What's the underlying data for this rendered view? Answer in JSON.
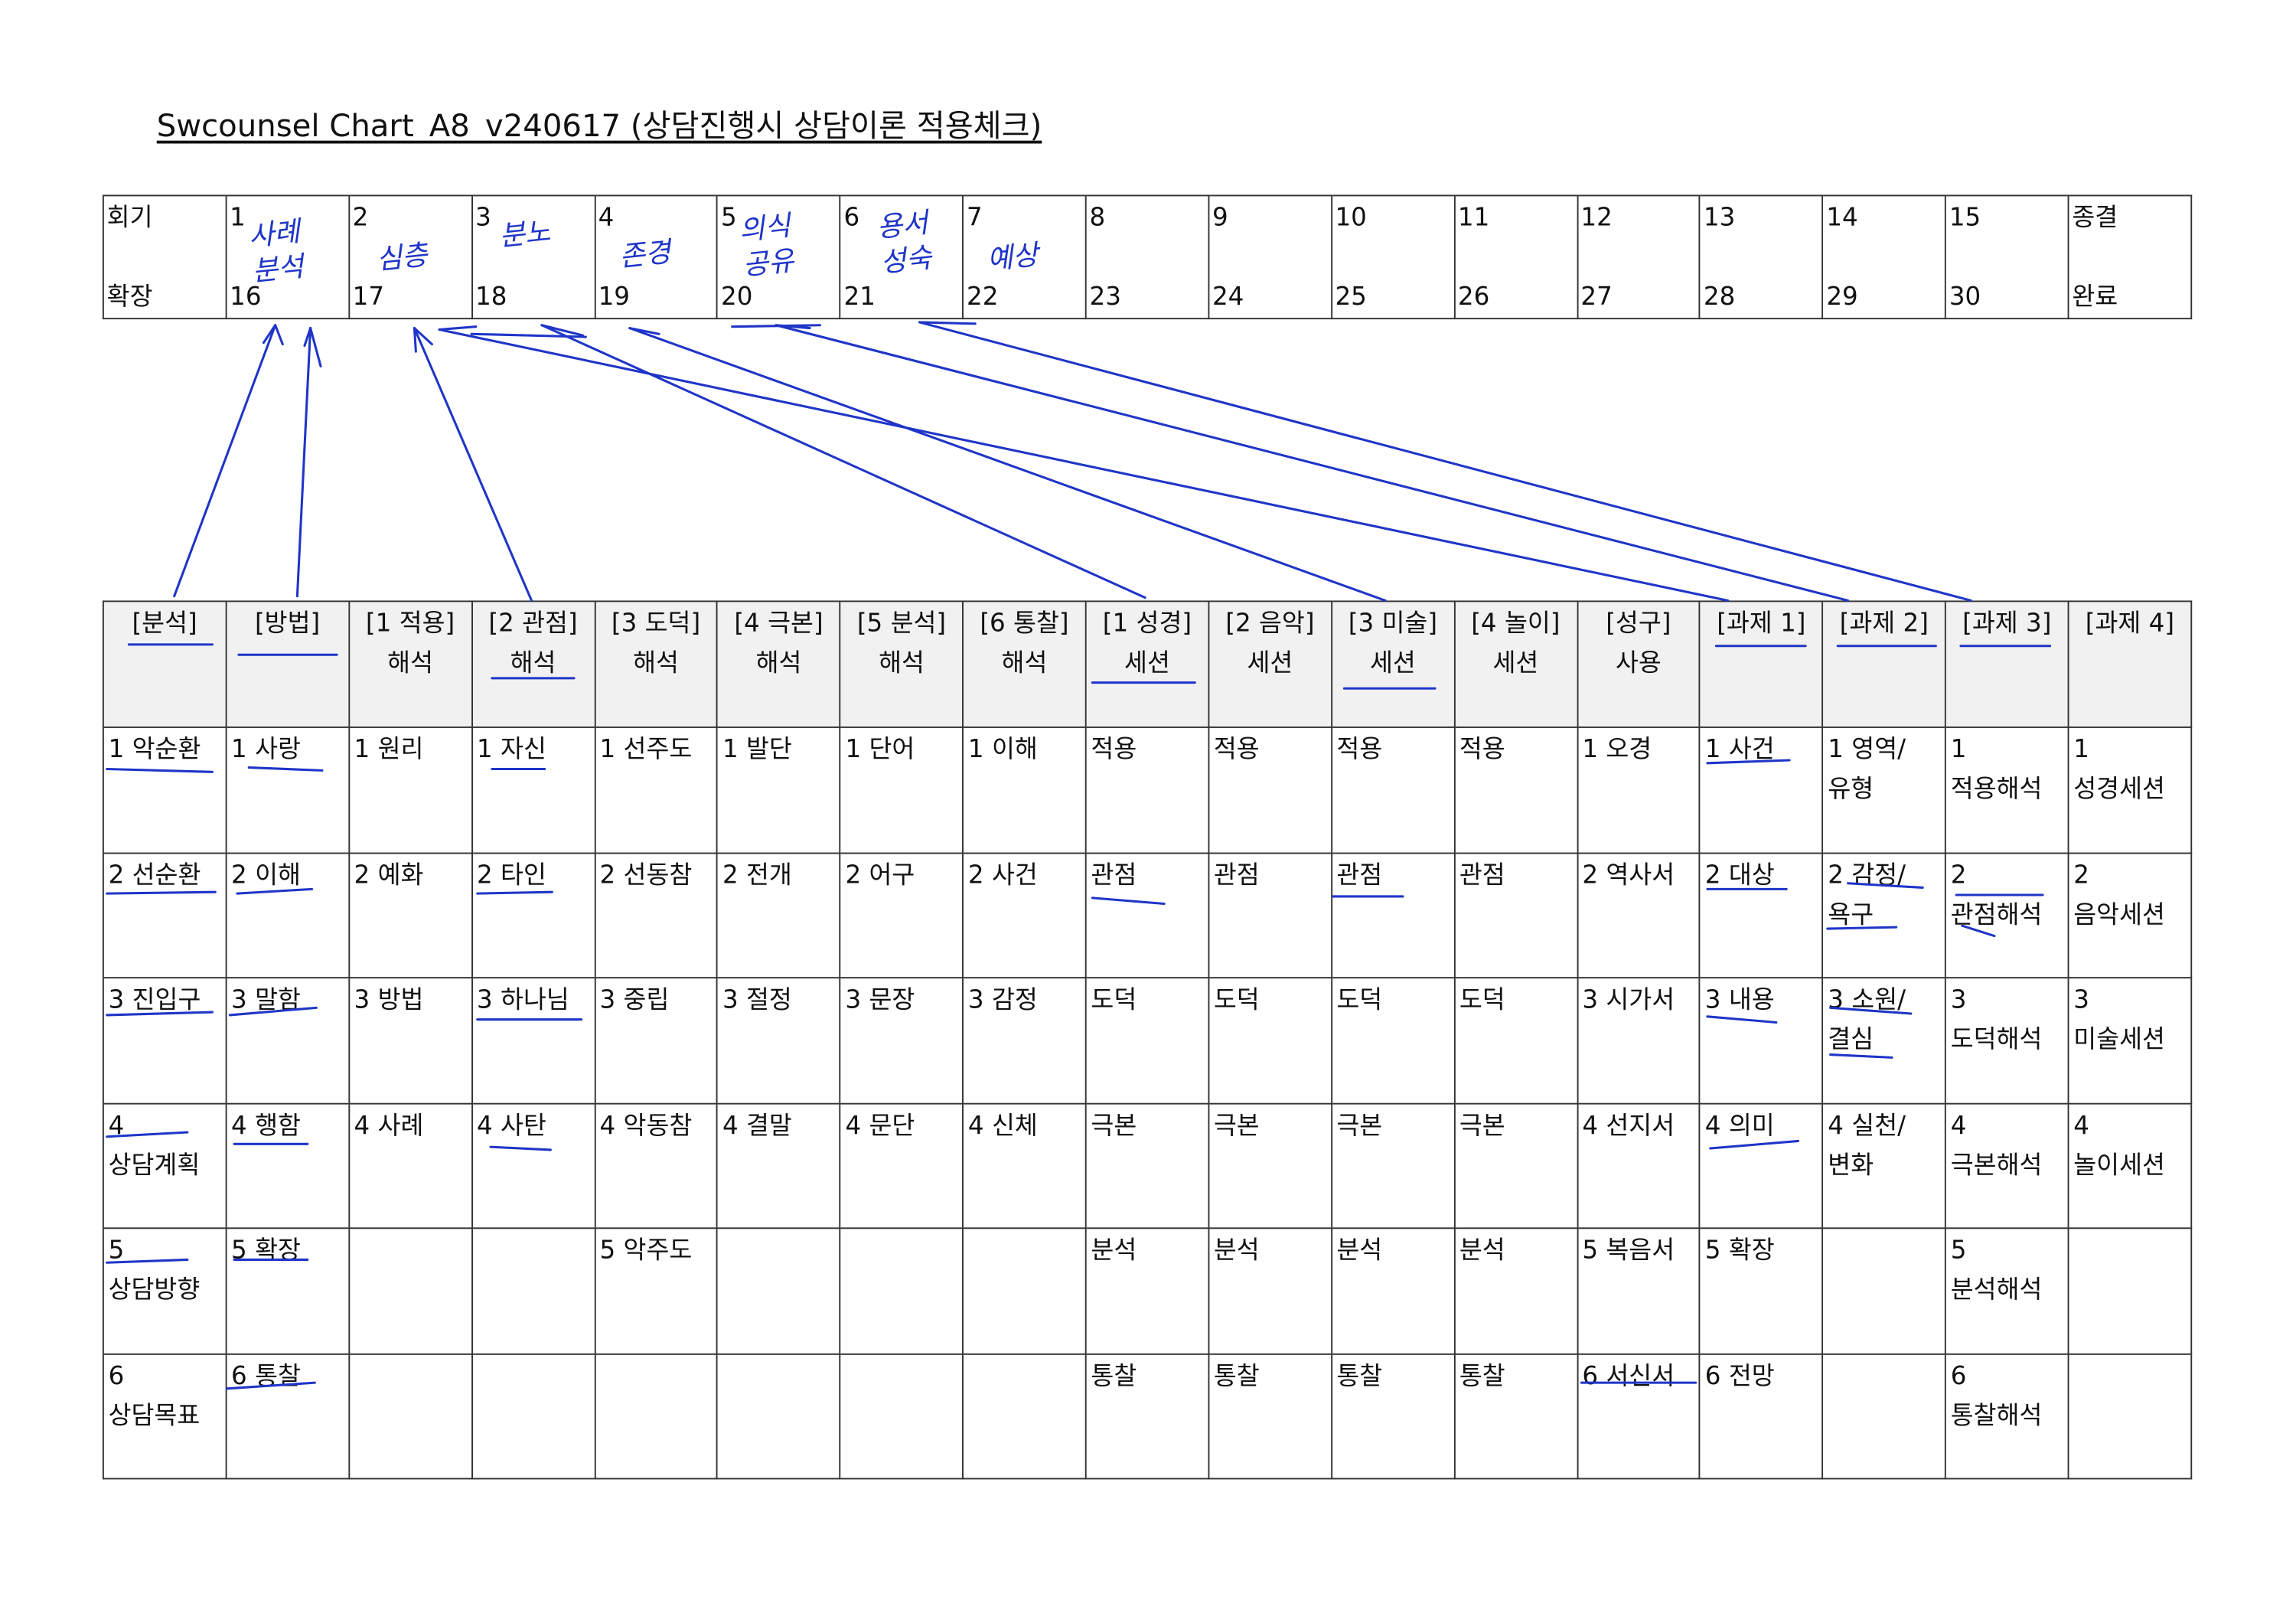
{
  "header": {
    "title": "Swcounsel Chart_A8_v240617 (상담진행시 상담이론 적용체크)"
  },
  "session_table": {
    "row_labels": [
      "회기",
      "확장"
    ],
    "sessions": [
      [
        1,
        16
      ],
      [
        2,
        17
      ],
      [
        3,
        18
      ],
      [
        4,
        19
      ],
      [
        5,
        20
      ],
      [
        6,
        21
      ],
      [
        7,
        22
      ],
      [
        8,
        23
      ],
      [
        9,
        24
      ],
      [
        10,
        25
      ],
      [
        11,
        26
      ],
      [
        12,
        27
      ],
      [
        13,
        28
      ],
      [
        14,
        29
      ],
      [
        15,
        30
      ],
      [
        "종결",
        "완료"
      ]
    ],
    "notes": [
      "사례 분석",
      "심층",
      "분노",
      "존경",
      "의식 공유",
      "용서 성숙",
      "예상",
      null,
      null,
      null,
      null,
      null,
      null,
      null,
      null,
      null
    ]
  },
  "theory_table": {
    "headers": [
      [
        "[분석]"
      ],
      [
        "[방법]"
      ],
      [
        "[1 적용]",
        "해석"
      ],
      [
        "[2 관점]",
        "해석"
      ],
      [
        "[3 도덕]",
        "해석"
      ],
      [
        "[4 극본]",
        "해석"
      ],
      [
        "[5 분석]",
        "해석"
      ],
      [
        "[6 통찰]",
        "해석"
      ],
      [
        "[1 성경]",
        "세션"
      ],
      [
        "[2 음악]",
        "세션"
      ],
      [
        "[3 미술]",
        "세션"
      ],
      [
        "[4 놀이]",
        "세션"
      ],
      [
        "[성구]",
        "사용"
      ],
      [
        "[과제 1]"
      ],
      [
        "[과제 2]"
      ],
      [
        "[과제 3]"
      ],
      [
        "[과제 4]"
      ]
    ],
    "rows": [
      [
        "1 악순환",
        "1 사랑",
        "1 원리",
        "1 자신",
        "1 선주도",
        "1 발단",
        "1 단어",
        "1 이해",
        "적용",
        "적용",
        "적용",
        "적용",
        "1 오경",
        "1 사건",
        "1 영역/유형",
        "1 적용해석",
        "1 성경세션"
      ],
      [
        "2 선순환",
        "2 이해",
        "2 예화",
        "2 타인",
        "2 선동참",
        "2 전개",
        "2 어구",
        "2 사건",
        "관점",
        "관점",
        "관점",
        "관점",
        "2 역사서",
        "2 대상",
        "2 감정/욕구",
        "2 관점해석",
        "2 음악세션"
      ],
      [
        "3 진입구",
        "3 말함",
        "3 방법",
        "3 하나님",
        "3 중립",
        "3 절정",
        "3 문장",
        "3 감정",
        "도덕",
        "도덕",
        "도덕",
        "도덕",
        "3 시가서",
        "3 내용",
        "3 소원/결심",
        "3 도덕해석",
        "3 미술세션"
      ],
      [
        "4 상담계획",
        "4 행함",
        "4 사례",
        "4 사탄",
        "4 악동참",
        "4 결말",
        "4 문단",
        "4 신체",
        "극본",
        "극본",
        "극본",
        "극본",
        "4 선지서",
        "4 의미",
        "4 실천/변화",
        "4 극본해석",
        "4 놀이세션"
      ],
      [
        "5 상담방향",
        "5 확장",
        null,
        null,
        "5 악주도",
        null,
        null,
        null,
        "분석",
        "분석",
        "분석",
        "분석",
        "5 복음서",
        "5 확장",
        null,
        "5 분석해석",
        null
      ],
      [
        "6 상담목표",
        "6 통찰",
        null,
        null,
        null,
        null,
        null,
        null,
        "통찰",
        "통찰",
        "통찰",
        "통찰",
        "6 서신서",
        "6 전망",
        null,
        "6 통찰해석",
        null
      ]
    ]
  }
}
